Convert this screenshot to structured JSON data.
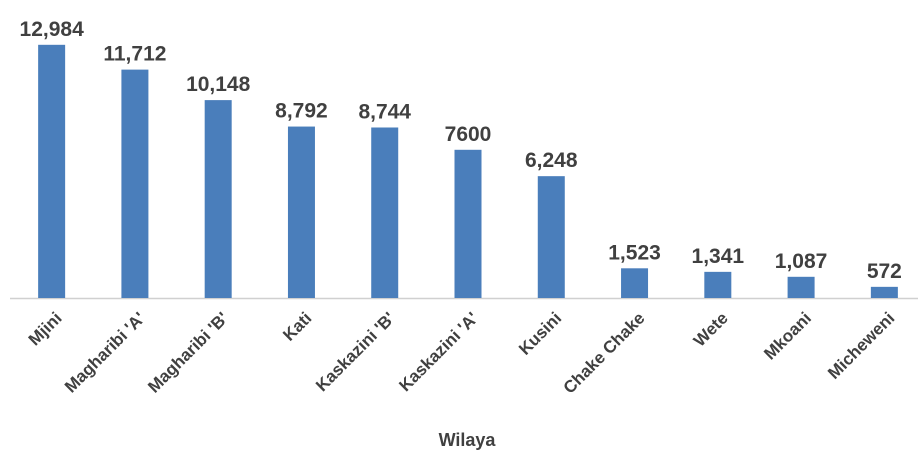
{
  "chart_data": {
    "type": "bar",
    "x_label": "Wilaya",
    "categories": [
      "Mjini",
      "Magharibi 'A'",
      "Magharibi 'B'",
      "Kati",
      "Kaskazini 'B'",
      "Kaskazini 'A'",
      "Kusini",
      "Chake Chake",
      "Wete",
      "Mkoani",
      "Micheweni"
    ],
    "values": [
      12984,
      11712,
      10148,
      8792,
      8744,
      7600,
      6248,
      1523,
      1341,
      1087,
      572
    ],
    "value_labels": [
      "12,984",
      "11,712",
      "10,148",
      "8,792",
      "8,744",
      "7600",
      "6,248",
      "1,523",
      "1,341",
      "1,087",
      "572"
    ],
    "color": "#4a7ebb",
    "ylim": [
      0,
      14000
    ]
  }
}
